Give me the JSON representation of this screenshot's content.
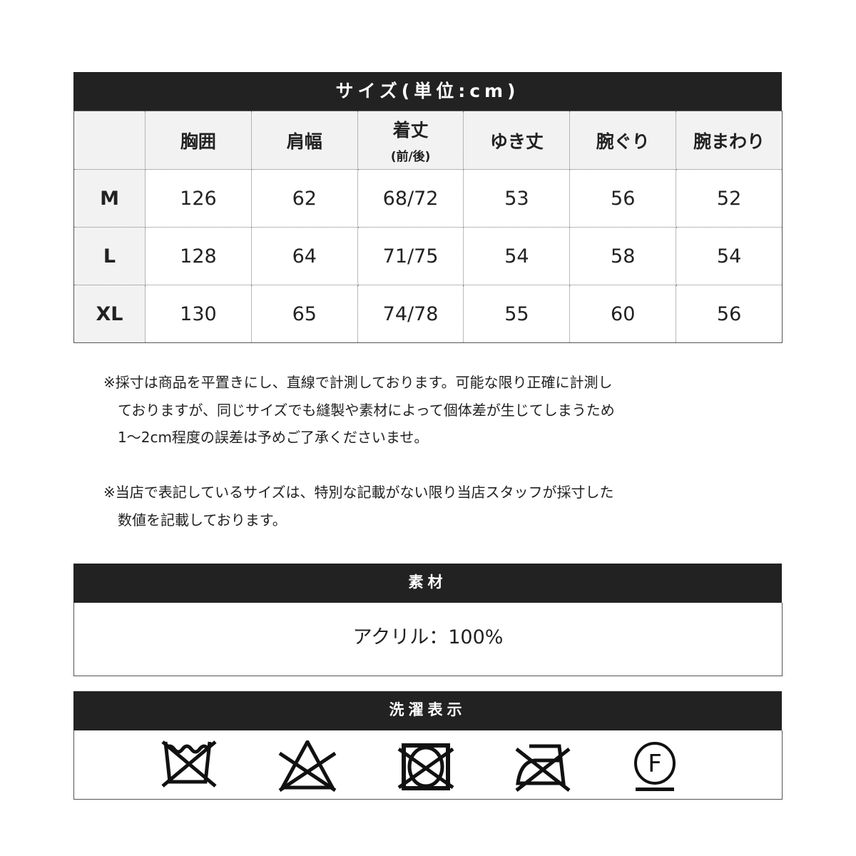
{
  "size_table": {
    "title": "サイズ(単位:cm)",
    "headers": [
      "胸囲",
      "肩幅",
      "着丈",
      "ゆき丈",
      "腕ぐり",
      "腕まわり"
    ],
    "header_sub": "(前/後)",
    "rows": [
      {
        "size": "M",
        "values": [
          "126",
          "62",
          "68/72",
          "53",
          "56",
          "52"
        ]
      },
      {
        "size": "L",
        "values": [
          "128",
          "64",
          "71/75",
          "54",
          "58",
          "54"
        ]
      },
      {
        "size": "XL",
        "values": [
          "130",
          "65",
          "74/78",
          "55",
          "60",
          "56"
        ]
      }
    ]
  },
  "notes": [
    [
      "※採寸は商品を平置きにし、直線で計測しております。可能な限り正確に計測し",
      "　ておりますが、同じサイズでも縫製や素材によって個体差が生じてしまうため",
      "　1～2cm程度の誤差は予めご了承くださいませ。"
    ],
    [
      "※当店で表記しているサイズは、特別な記載がない限り当店スタッフが採寸した",
      "　数値を記載しております。"
    ]
  ],
  "material": {
    "title": "素材",
    "value": "アクリル：100%"
  },
  "care": {
    "title": "洗濯表示",
    "icons": [
      "no-washing-icon",
      "no-bleach-icon",
      "no-tumble-dry-icon",
      "no-iron-icon",
      "dry-clean-f-icon"
    ],
    "f_letter": "F"
  }
}
